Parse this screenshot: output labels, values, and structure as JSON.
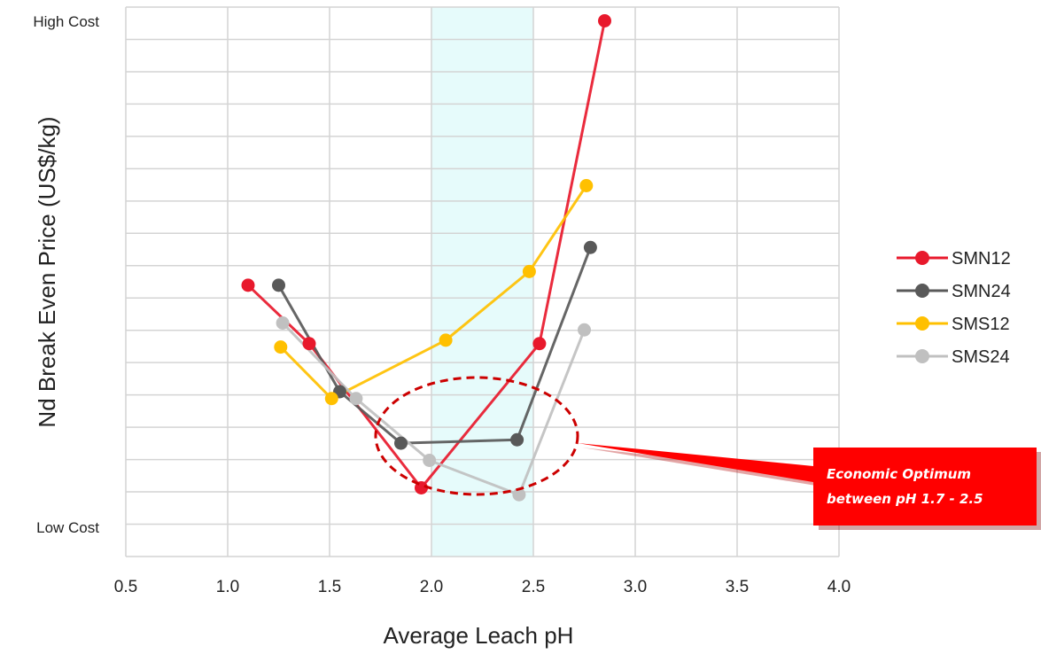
{
  "chart_data": {
    "type": "line",
    "title": "",
    "xlabel": "Average Leach pH",
    "ylabel": "Nd Break Even Price (US$/kg)",
    "xlim": [
      0.5,
      4.0
    ],
    "ylim": [
      0,
      16
    ],
    "x_ticks": [
      "0.5",
      "1.0",
      "1.5",
      "2.0",
      "2.5",
      "3.0",
      "3.5",
      "4.0"
    ],
    "y_top_label": "High Cost",
    "y_bottom_label": "Low Cost",
    "grid": true,
    "legend_position": "right",
    "highlight_band": {
      "x": [
        2.0,
        2.5
      ],
      "color": "#e6fbfb"
    },
    "series": [
      {
        "name": "SMN12",
        "color": "#e8192c",
        "x": [
          1.1,
          1.4,
          1.95,
          2.53,
          2.85
        ],
        "y": [
          7.9,
          6.2,
          2.0,
          6.2,
          15.6
        ]
      },
      {
        "name": "SMN24",
        "color": "#595959",
        "x": [
          1.25,
          1.55,
          1.85,
          2.42,
          2.78
        ],
        "y": [
          7.9,
          4.8,
          3.3,
          3.4,
          9.0
        ]
      },
      {
        "name": "SMS12",
        "color": "#ffc000",
        "x": [
          1.26,
          1.51,
          2.07,
          2.48,
          2.76
        ],
        "y": [
          6.1,
          4.6,
          6.3,
          8.3,
          10.8
        ]
      },
      {
        "name": "SMS24",
        "color": "#c0c0c0",
        "x": [
          1.27,
          1.63,
          1.99,
          2.43,
          2.75
        ],
        "y": [
          6.8,
          4.6,
          2.8,
          1.8,
          6.6
        ]
      }
    ],
    "annotation": {
      "text_line1": "Economic Optimum",
      "text_line2": "between pH 1.7 - 2.5",
      "box_color": "#ff0000",
      "ellipse_color": "#cc0000"
    }
  }
}
